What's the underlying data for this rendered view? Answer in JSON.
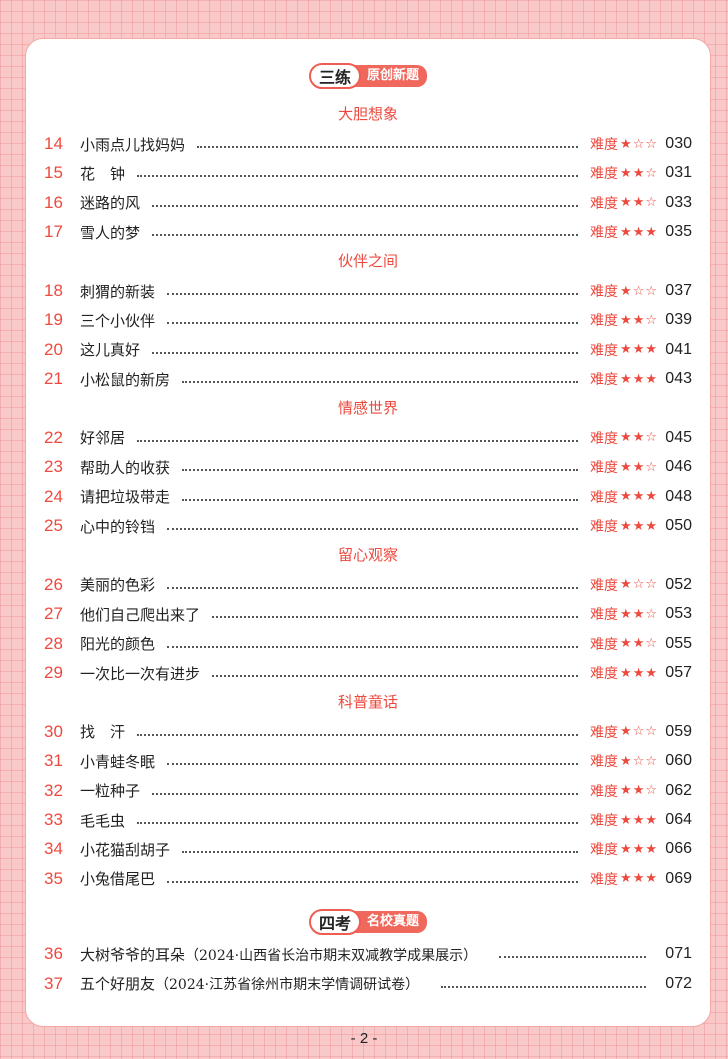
{
  "part3": {
    "badge_left": "三练",
    "badge_right": "原创新题",
    "difficulty_label": "难度",
    "sections": [
      {
        "title": "大胆想象",
        "items": [
          {
            "num": "14",
            "title": "小雨点儿找妈妈",
            "stars": 1,
            "page": "030"
          },
          {
            "num": "15",
            "title": "花　钟",
            "stars": 2,
            "page": "031"
          },
          {
            "num": "16",
            "title": "迷路的风",
            "stars": 2,
            "page": "033"
          },
          {
            "num": "17",
            "title": "雪人的梦",
            "stars": 3,
            "page": "035"
          }
        ]
      },
      {
        "title": "伙伴之间",
        "items": [
          {
            "num": "18",
            "title": "刺猬的新装",
            "stars": 1,
            "page": "037"
          },
          {
            "num": "19",
            "title": "三个小伙伴",
            "stars": 2,
            "page": "039"
          },
          {
            "num": "20",
            "title": "这儿真好",
            "stars": 3,
            "page": "041"
          },
          {
            "num": "21",
            "title": "小松鼠的新房",
            "stars": 3,
            "page": "043"
          }
        ]
      },
      {
        "title": "情感世界",
        "items": [
          {
            "num": "22",
            "title": "好邻居",
            "stars": 2,
            "page": "045"
          },
          {
            "num": "23",
            "title": "帮助人的收获",
            "stars": 2,
            "page": "046"
          },
          {
            "num": "24",
            "title": "请把垃圾带走",
            "stars": 3,
            "page": "048"
          },
          {
            "num": "25",
            "title": "心中的铃铛",
            "stars": 3,
            "page": "050"
          }
        ]
      },
      {
        "title": "留心观察",
        "items": [
          {
            "num": "26",
            "title": "美丽的色彩",
            "stars": 1,
            "page": "052"
          },
          {
            "num": "27",
            "title": "他们自己爬出来了",
            "stars": 2,
            "page": "053"
          },
          {
            "num": "28",
            "title": "阳光的颜色",
            "stars": 2,
            "page": "055"
          },
          {
            "num": "29",
            "title": "一次比一次有进步",
            "stars": 3,
            "page": "057"
          }
        ]
      },
      {
        "title": "科普童话",
        "items": [
          {
            "num": "30",
            "title": "找　汗",
            "stars": 1,
            "page": "059"
          },
          {
            "num": "31",
            "title": "小青蛙冬眠",
            "stars": 1,
            "page": "060"
          },
          {
            "num": "32",
            "title": "一粒种子",
            "stars": 2,
            "page": "062"
          },
          {
            "num": "33",
            "title": "毛毛虫",
            "stars": 3,
            "page": "064"
          },
          {
            "num": "34",
            "title": "小花猫刮胡子",
            "stars": 3,
            "page": "066"
          },
          {
            "num": "35",
            "title": "小兔借尾巴",
            "stars": 3,
            "page": "069"
          }
        ]
      }
    ]
  },
  "part4": {
    "badge_left": "四考",
    "badge_right": "名校真题",
    "items": [
      {
        "num": "36",
        "title": "大树爷爷的耳朵",
        "source": "（2024·山西省长治市期末双减教学成果展示）",
        "page": "071"
      },
      {
        "num": "37",
        "title": "五个好朋友",
        "source": "（2024·江苏省徐州市期末学情调研试卷）",
        "page": "072"
      }
    ]
  },
  "page_number": "- 2 -",
  "colors": {
    "accent": "#ec4a3f",
    "background": "#f9c9c9"
  }
}
